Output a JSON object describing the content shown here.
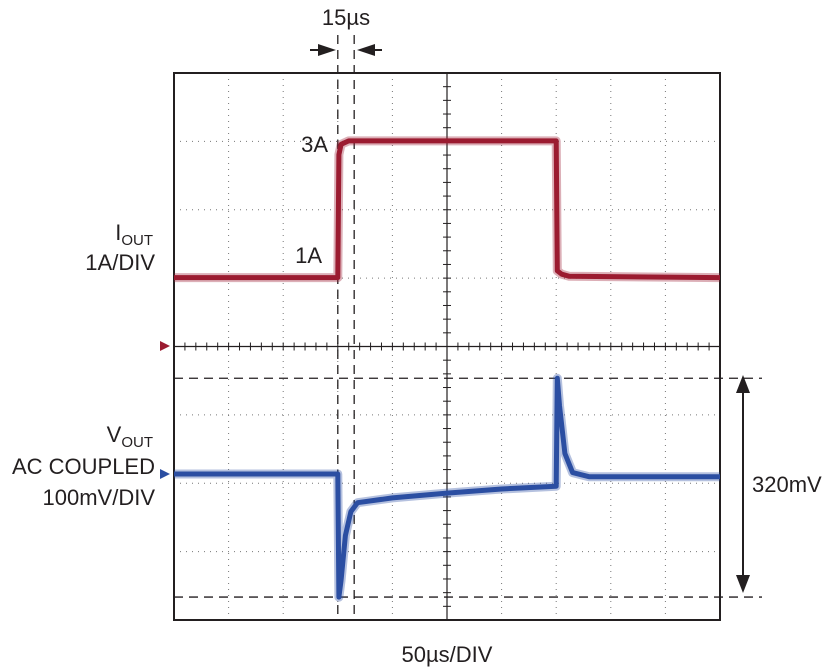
{
  "chart_data": {
    "type": "line",
    "title": "",
    "timebase_label": "50µs/DIV",
    "time_unit": "µs",
    "time_per_div": 50,
    "divisions": {
      "horizontal": 10,
      "vertical": 8
    },
    "grid": true,
    "xlim": [
      0,
      500
    ],
    "series": [
      {
        "key": "iout",
        "name_main": "I",
        "name_sub": "OUT",
        "scale_label": "1A/DIV",
        "color": "#9b1b30",
        "marker_color": "#9b1b30",
        "points": [
          [
            0,
            1
          ],
          [
            150,
            1
          ],
          [
            151,
            2.8
          ],
          [
            153,
            2.95
          ],
          [
            160,
            3.0
          ],
          [
            350,
            3.0
          ],
          [
            351,
            1.1
          ],
          [
            355,
            1.05
          ],
          [
            362,
            1.02
          ],
          [
            500,
            1.0
          ]
        ]
      },
      {
        "key": "vout",
        "name_main": "V",
        "name_sub": "OUT",
        "coupling_label": "AC COUPLED",
        "scale_label": "100mV/DIV",
        "unit": "mV",
        "color": "#2b4ea2",
        "marker_color": "#2b4ea2",
        "points": [
          [
            0,
            0
          ],
          [
            150,
            0
          ],
          [
            151,
            -180
          ],
          [
            153,
            -155
          ],
          [
            157,
            -90
          ],
          [
            162,
            -55
          ],
          [
            168,
            -42
          ],
          [
            200,
            -35
          ],
          [
            250,
            -28
          ],
          [
            300,
            -22
          ],
          [
            350,
            -18
          ],
          [
            351,
            140
          ],
          [
            353,
            100
          ],
          [
            358,
            30
          ],
          [
            365,
            2
          ],
          [
            380,
            -4
          ],
          [
            500,
            -4
          ]
        ]
      }
    ],
    "annotations": {
      "level_high": "3A",
      "level_low": "1A",
      "interval_label": "15µs",
      "interval_start": 150,
      "interval_end": 165,
      "dashed_time_markers": [
        150,
        165
      ],
      "peak_to_peak_label": "320mV",
      "peak_to_peak_mv": 320
    }
  }
}
